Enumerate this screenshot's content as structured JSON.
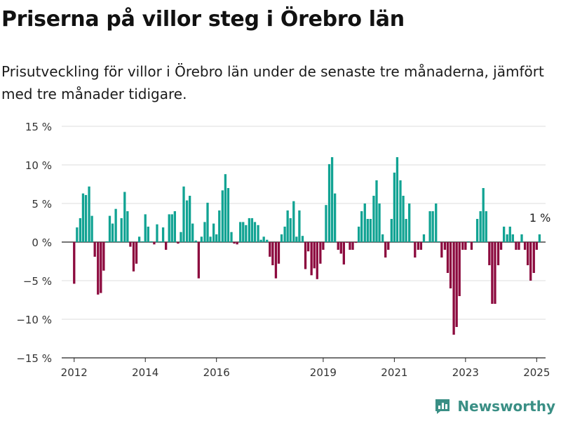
{
  "page": {
    "title": "Priserna på villor steg i Örebro län",
    "subtitle": "Prisutveckling för villor i Örebro län under de senaste tre månaderna, jämfört med tre månader tidigare."
  },
  "brand": {
    "name": "Newsworthy",
    "icon": "newsworthy-logo-icon"
  },
  "colors": {
    "positive": "#11a393",
    "negative": "#8c0a3e",
    "grid": "#dddddd",
    "axis": "#222222"
  },
  "chart_data": {
    "type": "bar",
    "ylim": [
      -15,
      15
    ],
    "yticks": [
      15,
      10,
      5,
      0,
      -5,
      -10,
      -15
    ],
    "ytick_labels": [
      "15 %",
      "10 %",
      "5 %",
      "0 %",
      "−5 %",
      "−10 %",
      "−15 %"
    ],
    "xticks": [
      2012,
      2014,
      2016,
      2019,
      2021,
      2023,
      2025
    ],
    "xtick_labels": [
      "2012",
      "2014",
      "2016",
      "2019",
      "2021",
      "2023",
      "2025"
    ],
    "annotation": "1 %",
    "x": [
      2012.0,
      2012.08,
      2012.17,
      2012.25,
      2012.33,
      2012.42,
      2012.5,
      2012.58,
      2012.67,
      2012.75,
      2012.83,
      2012.92,
      2013.0,
      2013.08,
      2013.17,
      2013.25,
      2013.33,
      2013.42,
      2013.5,
      2013.58,
      2013.67,
      2013.75,
      2013.83,
      2013.92,
      2014.0,
      2014.08,
      2014.17,
      2014.25,
      2014.33,
      2014.42,
      2014.5,
      2014.58,
      2014.67,
      2014.75,
      2014.83,
      2014.92,
      2015.0,
      2015.08,
      2015.17,
      2015.25,
      2015.33,
      2015.42,
      2015.5,
      2015.58,
      2015.67,
      2015.75,
      2015.83,
      2015.92,
      2016.0,
      2016.08,
      2016.17,
      2016.25,
      2016.33,
      2016.42,
      2016.5,
      2016.58,
      2016.67,
      2016.75,
      2016.83,
      2016.92,
      2017.0,
      2017.08,
      2017.17,
      2017.25,
      2017.33,
      2017.42,
      2017.5,
      2017.58,
      2017.67,
      2017.75,
      2017.83,
      2017.92,
      2018.0,
      2018.08,
      2018.17,
      2018.25,
      2018.33,
      2018.42,
      2018.5,
      2018.58,
      2018.67,
      2018.75,
      2018.83,
      2018.92,
      2019.0,
      2019.08,
      2019.17,
      2019.25,
      2019.33,
      2019.42,
      2019.5,
      2019.58,
      2019.67,
      2019.75,
      2019.83,
      2019.92,
      2020.0,
      2020.08,
      2020.17,
      2020.25,
      2020.33,
      2020.42,
      2020.5,
      2020.58,
      2020.67,
      2020.75,
      2020.83,
      2020.92,
      2021.0,
      2021.08,
      2021.17,
      2021.25,
      2021.33,
      2021.42,
      2021.5,
      2021.58,
      2021.67,
      2021.75,
      2021.83,
      2021.92,
      2022.0,
      2022.08,
      2022.17,
      2022.25,
      2022.33,
      2022.42,
      2022.5,
      2022.58,
      2022.67,
      2022.75,
      2022.83,
      2022.92,
      2023.0,
      2023.08,
      2023.17,
      2023.25,
      2023.33,
      2023.42,
      2023.5,
      2023.58,
      2023.67,
      2023.75,
      2023.83,
      2023.92,
      2024.0,
      2024.08,
      2024.17,
      2024.25,
      2024.33,
      2024.42,
      2024.5,
      2024.58,
      2024.67,
      2024.75,
      2024.83,
      2024.92,
      2025.0,
      2025.08
    ],
    "values": [
      -5.4,
      1.9,
      3.1,
      6.3,
      6.1,
      7.2,
      3.4,
      -1.9,
      -6.8,
      -6.6,
      -3.7,
      0.1,
      3.4,
      2.4,
      4.3,
      0.1,
      3.1,
      6.5,
      4.0,
      -0.6,
      -3.8,
      -2.8,
      0.7,
      0.1,
      3.6,
      2.0,
      0.1,
      -0.3,
      2.3,
      0.1,
      1.9,
      -1.0,
      3.6,
      3.6,
      4.0,
      -0.2,
      1.3,
      7.2,
      5.4,
      6.0,
      2.4,
      0.2,
      -4.7,
      0.7,
      2.6,
      5.1,
      0.7,
      2.4,
      1.0,
      4.1,
      6.7,
      8.8,
      7.0,
      1.3,
      -0.2,
      -0.3,
      2.6,
      2.6,
      2.2,
      3.1,
      3.1,
      2.6,
      2.2,
      0.3,
      0.7,
      0.3,
      -1.9,
      -3.0,
      -4.7,
      -2.8,
      1.0,
      2.0,
      4.1,
      3.1,
      5.3,
      0.7,
      4.1,
      0.8,
      -3.5,
      -1.2,
      -4.3,
      -3.4,
      -4.8,
      -2.8,
      -1.0,
      4.8,
      10.1,
      11.0,
      6.3,
      -1.0,
      -1.5,
      -2.9,
      -0.1,
      -1.0,
      -1.0,
      -0.1,
      2.0,
      4.0,
      5.0,
      3.0,
      3.0,
      6.0,
      8.0,
      5.0,
      1.0,
      -2.0,
      -1.0,
      3.0,
      9.0,
      11.0,
      8.0,
      6.0,
      3.0,
      5.0,
      0.1,
      -2.0,
      -1.0,
      -1.0,
      1.0,
      0.1,
      4.0,
      4.0,
      5.0,
      0.1,
      -2.0,
      -1.0,
      -4.0,
      -6.0,
      -12.0,
      -11.0,
      -7.0,
      -1.0,
      -1.0,
      0.1,
      -1.0,
      0.1,
      3.0,
      4.0,
      7.0,
      4.0,
      -3.0,
      -8.0,
      -8.0,
      -3.0,
      -1.0,
      2.0,
      1.0,
      2.0,
      1.0,
      -1.0,
      -1.0,
      1.0,
      -1.0,
      -3.0,
      -5.0,
      -4.0,
      -1.0,
      1.0
    ]
  }
}
